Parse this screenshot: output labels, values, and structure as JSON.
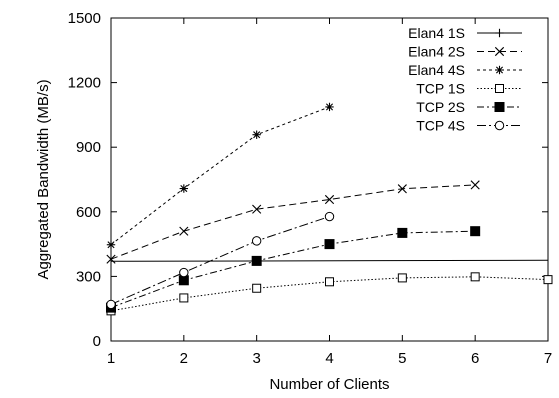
{
  "chart_data": {
    "type": "line",
    "title": "",
    "xlabel": "Number of Clients",
    "ylabel": "Aggregated Bandwidth (MB/s)",
    "xlim": [
      1,
      7
    ],
    "ylim": [
      0,
      1500
    ],
    "xticks": [
      1,
      2,
      3,
      4,
      5,
      6,
      7
    ],
    "yticks": [
      0,
      300,
      600,
      900,
      1200,
      1500
    ],
    "grid": false,
    "legend_position": "top-right",
    "series": [
      {
        "name": "Elan4 1S",
        "marker": "plus",
        "dash": "solid",
        "points": [
          [
            1,
            370
          ],
          [
            7,
            375
          ]
        ]
      },
      {
        "name": "Elan4 2S",
        "marker": "x",
        "dash": "dashed",
        "points": [
          [
            1,
            380
          ],
          [
            2,
            510
          ],
          [
            3,
            612
          ],
          [
            4,
            657
          ],
          [
            5,
            707
          ],
          [
            6,
            725
          ]
        ]
      },
      {
        "name": "Elan4 4S",
        "marker": "star",
        "dash": "dotted",
        "points": [
          [
            1,
            447
          ],
          [
            2,
            708
          ],
          [
            3,
            958
          ],
          [
            4,
            1087
          ]
        ]
      },
      {
        "name": "TCP 1S",
        "marker": "open-square",
        "dash": "dense-dotted",
        "points": [
          [
            1,
            140
          ],
          [
            2,
            200
          ],
          [
            3,
            245
          ],
          [
            4,
            275
          ],
          [
            5,
            293
          ],
          [
            6,
            298
          ],
          [
            7,
            285
          ]
        ]
      },
      {
        "name": "TCP 2S",
        "marker": "filled-square",
        "dash": "dash-dot",
        "points": [
          [
            1,
            155
          ],
          [
            2,
            282
          ],
          [
            3,
            372
          ],
          [
            4,
            450
          ],
          [
            5,
            502
          ],
          [
            6,
            510
          ]
        ]
      },
      {
        "name": "TCP 4S",
        "marker": "open-circle",
        "dash": "dash-dot-long",
        "points": [
          [
            1,
            170
          ],
          [
            2,
            318
          ],
          [
            3,
            465
          ],
          [
            4,
            578
          ]
        ]
      }
    ]
  }
}
